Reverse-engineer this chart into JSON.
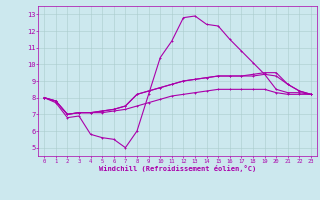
{
  "xlabel": "Windchill (Refroidissement éolien,°C)",
  "background_color": "#cce8ee",
  "line_color": "#aa00aa",
  "grid_color": "#aacccc",
  "xlim": [
    -0.5,
    23.5
  ],
  "ylim": [
    4.5,
    13.5
  ],
  "xticks": [
    0,
    1,
    2,
    3,
    4,
    5,
    6,
    7,
    8,
    9,
    10,
    11,
    12,
    13,
    14,
    15,
    16,
    17,
    18,
    19,
    20,
    21,
    22,
    23
  ],
  "yticks": [
    5,
    6,
    7,
    8,
    9,
    10,
    11,
    12,
    13
  ],
  "lines": [
    {
      "x": [
        0,
        1,
        2,
        3,
        4,
        5,
        6,
        7,
        8,
        9,
        10,
        11,
        12,
        13,
        14,
        15,
        16,
        17,
        18,
        19,
        20,
        21,
        22,
        23
      ],
      "y": [
        8.0,
        7.7,
        6.8,
        6.9,
        5.8,
        5.6,
        5.5,
        5.0,
        6.0,
        8.2,
        10.4,
        11.4,
        12.8,
        12.9,
        12.4,
        12.3,
        11.5,
        10.8,
        10.1,
        9.4,
        8.5,
        8.3,
        8.3,
        8.2
      ]
    },
    {
      "x": [
        0,
        1,
        2,
        3,
        4,
        5,
        6,
        7,
        8,
        9,
        10,
        11,
        12,
        13,
        14,
        15,
        16,
        17,
        18,
        19,
        20,
        21,
        22,
        23
      ],
      "y": [
        8.0,
        7.8,
        7.0,
        7.1,
        7.1,
        7.1,
        7.2,
        7.3,
        7.5,
        7.7,
        7.9,
        8.1,
        8.2,
        8.3,
        8.4,
        8.5,
        8.5,
        8.5,
        8.5,
        8.5,
        8.3,
        8.2,
        8.2,
        8.2
      ]
    },
    {
      "x": [
        0,
        1,
        2,
        3,
        4,
        5,
        6,
        7,
        8,
        9,
        10,
        11,
        12,
        13,
        14,
        15,
        16,
        17,
        18,
        19,
        20,
        21,
        22,
        23
      ],
      "y": [
        8.0,
        7.8,
        7.0,
        7.1,
        7.1,
        7.2,
        7.3,
        7.5,
        8.2,
        8.4,
        8.6,
        8.8,
        9.0,
        9.1,
        9.2,
        9.3,
        9.3,
        9.3,
        9.3,
        9.4,
        9.3,
        8.8,
        8.4,
        8.2
      ]
    },
    {
      "x": [
        0,
        1,
        2,
        3,
        4,
        5,
        6,
        7,
        8,
        9,
        10,
        11,
        12,
        13,
        14,
        15,
        16,
        17,
        18,
        19,
        20,
        21,
        22,
        23
      ],
      "y": [
        8.0,
        7.8,
        7.0,
        7.1,
        7.1,
        7.2,
        7.3,
        7.5,
        8.2,
        8.4,
        8.6,
        8.8,
        9.0,
        9.1,
        9.2,
        9.3,
        9.3,
        9.3,
        9.4,
        9.5,
        9.5,
        8.8,
        8.4,
        8.2
      ]
    }
  ]
}
